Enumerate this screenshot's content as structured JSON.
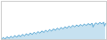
{
  "chart_data": {
    "type": "line",
    "x": [
      0,
      1,
      2,
      3,
      4,
      5,
      6,
      7,
      8,
      9,
      10,
      11,
      12,
      13,
      14,
      15,
      16,
      17,
      18,
      19,
      20,
      21,
      22,
      23,
      24,
      25,
      26,
      27,
      28,
      29,
      30,
      31,
      32,
      33,
      34,
      35,
      36,
      37,
      38,
      39,
      40,
      41,
      42,
      43,
      44,
      45,
      46,
      47,
      48,
      49,
      50,
      51,
      52,
      53,
      54,
      55,
      56,
      57,
      58,
      59,
      60,
      61,
      62,
      63,
      64,
      65,
      66,
      67,
      68,
      69,
      70,
      71,
      72,
      73,
      74,
      75,
      76,
      77,
      78,
      79,
      80,
      81,
      82,
      83,
      84,
      85,
      86,
      87,
      88,
      89,
      90,
      91,
      92,
      93,
      94,
      95,
      96,
      97,
      98,
      99,
      100,
      101,
      102,
      103,
      104,
      105,
      106,
      107
    ],
    "values": [
      72.0,
      74.5,
      73.0,
      71.5,
      73.5,
      76.0,
      74.5,
      73.0,
      74.5,
      77.0,
      75.5,
      74.0,
      76.0,
      78.5,
      77.0,
      75.5,
      77.0,
      79.5,
      78.0,
      76.5,
      78.5,
      81.0,
      79.5,
      78.0,
      80.0,
      82.5,
      81.0,
      79.5,
      81.5,
      84.0,
      82.5,
      81.0,
      83.0,
      85.5,
      84.0,
      82.5,
      84.5,
      87.0,
      85.5,
      84.0,
      86.0,
      88.5,
      87.0,
      85.5,
      87.5,
      90.0,
      88.5,
      87.0,
      89.0,
      91.5,
      90.0,
      88.5,
      90.5,
      93.0,
      91.5,
      90.0,
      92.0,
      94.5,
      93.0,
      91.5,
      93.5,
      96.0,
      94.5,
      93.0,
      95.0,
      97.5,
      96.0,
      94.5,
      96.5,
      99.0,
      97.5,
      96.0,
      98.0,
      100.5,
      99.0,
      97.5,
      99.0,
      101.5,
      100.0,
      98.5,
      100.0,
      102.5,
      101.0,
      99.5,
      101.0,
      103.5,
      102.0,
      100.5,
      102.0,
      104.5,
      103.0,
      101.5,
      103.0,
      105.5,
      97.0,
      102.0,
      103.5,
      106.0,
      104.5,
      103.0,
      104.5,
      107.0,
      105.5,
      104.0,
      105.5,
      107.5,
      99.0,
      104.5
    ],
    "color": "#5ba8d4",
    "xlim": [
      -1,
      108
    ],
    "ylim": [
      70.0,
      152.5
    ],
    "tick_labels": false
  }
}
